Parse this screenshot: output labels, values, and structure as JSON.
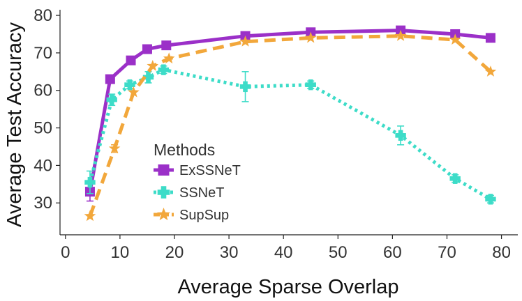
{
  "chart_data": {
    "type": "line",
    "title": "",
    "xlabel": "Average Sparse Overlap",
    "ylabel": "Average Test Accuracy",
    "xlim": [
      -1,
      83
    ],
    "ylim": [
      21.5,
      81.5
    ],
    "xticks": [
      0,
      10,
      20,
      30,
      40,
      50,
      60,
      70,
      80
    ],
    "yticks": [
      30,
      40,
      50,
      60,
      70,
      80
    ],
    "grid": false,
    "legend": {
      "title": "Methods",
      "placement": "center-left"
    },
    "series": [
      {
        "name": "ExSSNeT",
        "color": "#9B30C8",
        "line_style": "solid",
        "marker": "square",
        "x": [
          4.5,
          8.2,
          12.0,
          15.0,
          18.5,
          33.0,
          45.0,
          61.5,
          71.5,
          78.0
        ],
        "y": [
          33.0,
          63.0,
          68.0,
          71.0,
          72.0,
          74.5,
          75.5,
          76.0,
          75.0,
          74.0
        ],
        "err": [
          2.5,
          0,
          0,
          0,
          0,
          0,
          0,
          0,
          0,
          0
        ]
      },
      {
        "name": "SSNeT",
        "color": "#3DDCC8",
        "line_style": "dotted",
        "marker": "plus",
        "x": [
          4.5,
          8.5,
          11.8,
          15.2,
          18.0,
          33.0,
          45.0,
          61.5,
          71.5,
          78.0
        ],
        "y": [
          35.5,
          57.5,
          61.5,
          63.5,
          65.5,
          61.0,
          61.5,
          48.0,
          36.5,
          31.0
        ],
        "err": [
          3.0,
          1.5,
          1.0,
          1.5,
          1.0,
          4.0,
          1.0,
          2.5,
          1.0,
          1.0
        ]
      },
      {
        "name": "SupSup",
        "color": "#F2A73B",
        "line_style": "dashed",
        "marker": "star",
        "x": [
          4.5,
          9.0,
          12.5,
          16.0,
          19.0,
          33.0,
          45.0,
          61.5,
          71.5,
          78.0
        ],
        "y": [
          26.5,
          44.5,
          59.5,
          66.5,
          68.5,
          73.0,
          74.0,
          74.5,
          73.5,
          65.0
        ],
        "err": [
          0,
          1.0,
          0,
          0,
          0,
          0,
          0,
          0,
          0,
          0
        ]
      }
    ]
  }
}
